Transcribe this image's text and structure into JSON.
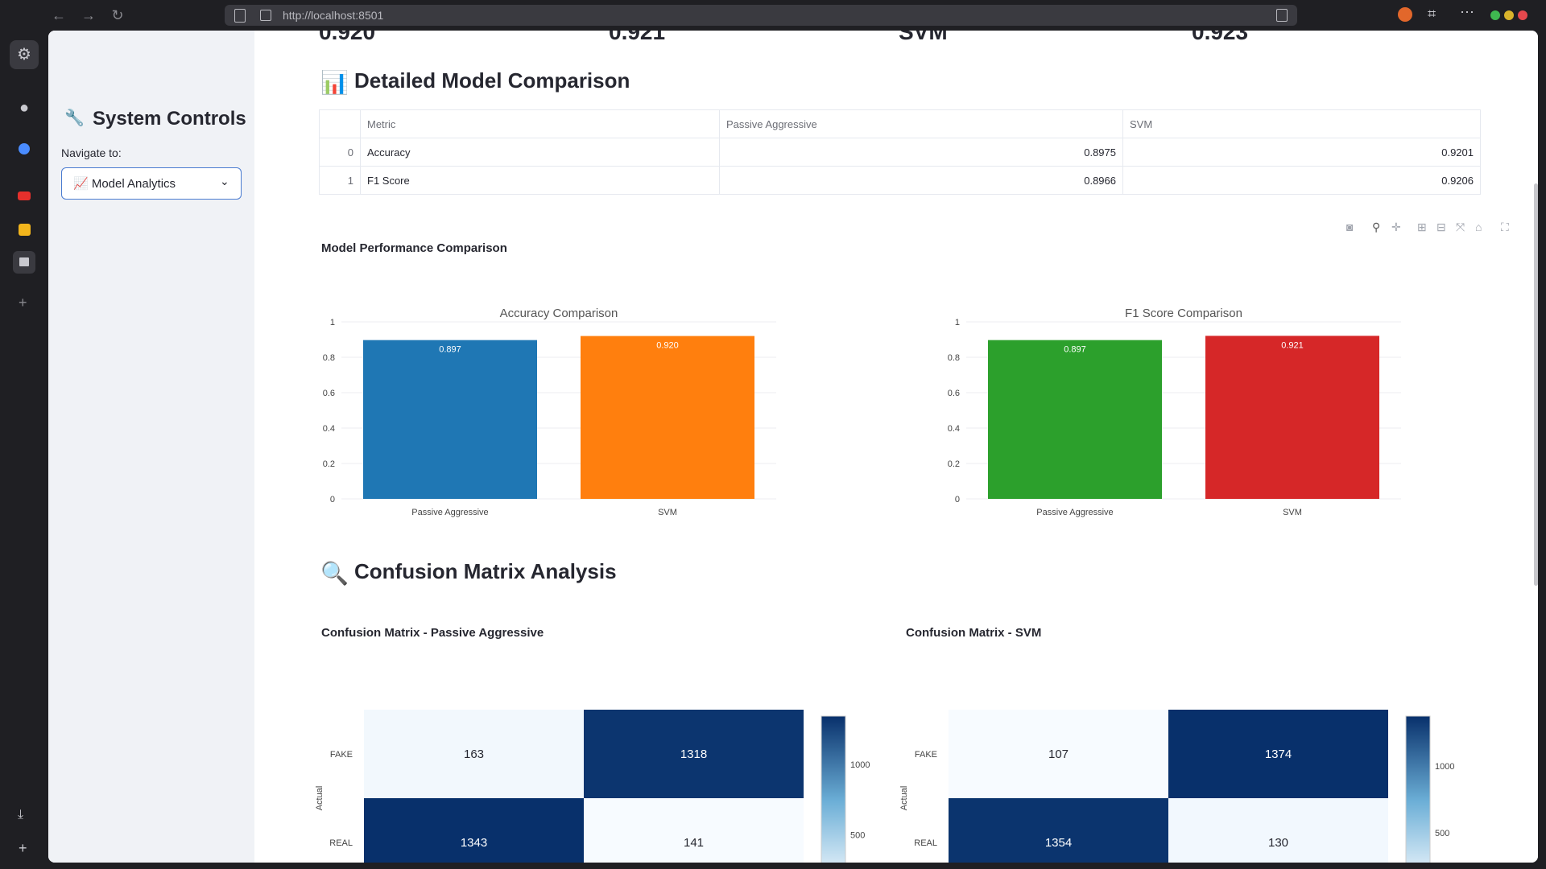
{
  "browser": {
    "url": "http://localhost:8501"
  },
  "sidebar": {
    "title": "System Controls",
    "navigate_label": "Navigate to:",
    "selected": "📈 Model Analytics"
  },
  "top_metrics_partial": [
    "0.920",
    "0.921",
    "SVM",
    "0.923"
  ],
  "comparison": {
    "title": "Detailed Model Comparison",
    "columns": [
      "",
      "Metric",
      "Passive Aggressive",
      "SVM"
    ],
    "rows": [
      {
        "index": "0",
        "metric": "Accuracy",
        "pa": "0.8975",
        "svm": "0.9201"
      },
      {
        "index": "1",
        "metric": "F1 Score",
        "pa": "0.8966",
        "svm": "0.9206"
      }
    ]
  },
  "performance": {
    "title": "Model Performance Comparison"
  },
  "chart_data": [
    {
      "type": "bar",
      "title": "Accuracy Comparison",
      "categories": [
        "Passive Aggressive",
        "SVM"
      ],
      "values": [
        0.897,
        0.92
      ],
      "labels": [
        "0.897",
        "0.920"
      ],
      "colors": [
        "#1f77b4",
        "#ff7f0e"
      ],
      "ylim": [
        0,
        1
      ],
      "yticks": [
        "0",
        "0.2",
        "0.4",
        "0.6",
        "0.8",
        "1"
      ]
    },
    {
      "type": "bar",
      "title": "F1 Score Comparison",
      "categories": [
        "Passive Aggressive",
        "SVM"
      ],
      "values": [
        0.897,
        0.921
      ],
      "labels": [
        "0.897",
        "0.921"
      ],
      "colors": [
        "#2ca02c",
        "#d62728"
      ],
      "ylim": [
        0,
        1
      ],
      "yticks": [
        "0",
        "0.2",
        "0.4",
        "0.6",
        "0.8",
        "1"
      ]
    },
    {
      "type": "heatmap",
      "title": "Confusion Matrix - Passive Aggressive",
      "ylabel": "Actual",
      "rows": [
        "FAKE",
        "REAL"
      ],
      "values": [
        [
          163,
          1318
        ],
        [
          1343,
          141
        ]
      ],
      "colorbar_ticks": [
        "1000",
        "500"
      ]
    },
    {
      "type": "heatmap",
      "title": "Confusion Matrix - SVM",
      "ylabel": "Actual",
      "rows": [
        "FAKE",
        "REAL"
      ],
      "values": [
        [
          107,
          1374
        ],
        [
          1354,
          130
        ]
      ],
      "colorbar_ticks": [
        "1000",
        "500"
      ]
    }
  ],
  "confusion": {
    "title": "Confusion Matrix Analysis"
  }
}
